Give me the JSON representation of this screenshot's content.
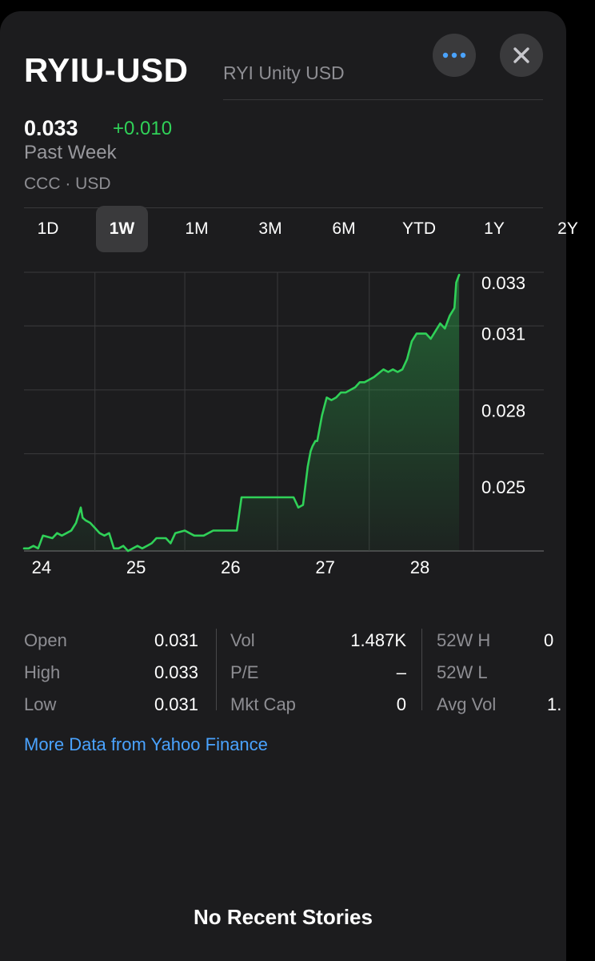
{
  "header": {
    "ticker": "RYIU-USD",
    "full_name": "RYI Unity USD"
  },
  "quote": {
    "price": "0.033",
    "change": "+0.010",
    "period": "Past Week",
    "exchange": "CCC · USD"
  },
  "tabs": [
    "1D",
    "1W",
    "1M",
    "3M",
    "6M",
    "YTD",
    "1Y",
    "2Y"
  ],
  "active_tab": "1W",
  "colors": {
    "background": "#1c1c1e",
    "positive": "#30d158",
    "link": "#4aa3ff",
    "muted": "#8e8e93"
  },
  "icons": {
    "more": "ellipsis-icon",
    "close": "close-icon"
  },
  "chart_data": {
    "type": "area",
    "y_tick_labels": [
      "0.033",
      "0.031",
      "0.028",
      "0.025"
    ],
    "y_ticks": [
      0.033,
      0.031,
      0.028,
      0.025
    ],
    "x_tick_labels": [
      "24",
      "25",
      "26",
      "27",
      "28"
    ],
    "x_ticks": [
      24.0,
      25.0,
      26.0,
      27.0,
      28.0
    ],
    "xlim": [
      23.9,
      28.55
    ],
    "ylim": [
      0.0225,
      0.0334
    ],
    "grid": true,
    "series": [
      {
        "x": [
          23.9,
          23.95,
          24.0,
          24.05,
          24.1,
          24.2,
          24.25,
          24.3,
          24.35,
          24.4,
          24.45,
          24.5,
          24.52,
          24.55,
          24.6,
          24.65,
          24.7,
          24.75,
          24.8,
          24.85,
          24.9,
          24.95,
          25.0,
          25.05,
          25.1,
          25.15,
          25.2,
          25.25,
          25.3,
          25.35,
          25.4,
          25.45,
          25.5,
          25.6,
          25.65,
          25.7,
          25.75,
          25.8,
          25.9,
          26.0,
          26.1,
          26.15,
          26.2,
          26.3,
          26.4,
          26.45,
          26.5,
          26.6,
          26.65,
          26.7,
          26.75,
          26.8,
          26.85,
          26.9,
          26.93,
          26.95,
          26.98,
          27.0,
          27.05,
          27.1,
          27.15,
          27.2,
          27.25,
          27.3,
          27.35,
          27.4,
          27.45,
          27.5,
          27.55,
          27.6,
          27.7,
          27.75,
          27.8,
          27.85,
          27.9,
          27.95,
          28.0,
          28.05,
          28.1,
          28.15,
          28.2,
          28.25,
          28.3,
          28.35,
          28.4,
          28.45,
          28.47,
          28.5
        ],
        "y": [
          0.0226,
          0.0226,
          0.0227,
          0.0226,
          0.0231,
          0.023,
          0.0232,
          0.0231,
          0.0232,
          0.0233,
          0.0236,
          0.0242,
          0.0238,
          0.0237,
          0.0236,
          0.0234,
          0.0232,
          0.0231,
          0.0232,
          0.0226,
          0.0226,
          0.0227,
          0.0225,
          0.0226,
          0.0227,
          0.0226,
          0.0227,
          0.0228,
          0.023,
          0.023,
          0.023,
          0.0228,
          0.0232,
          0.0233,
          0.0232,
          0.0231,
          0.0231,
          0.0231,
          0.0233,
          0.0233,
          0.0233,
          0.0233,
          0.0246,
          0.0246,
          0.0246,
          0.0246,
          0.0246,
          0.0246,
          0.0246,
          0.0246,
          0.0246,
          0.0242,
          0.0243,
          0.0258,
          0.0264,
          0.0266,
          0.0268,
          0.0268,
          0.0278,
          0.0285,
          0.0284,
          0.0285,
          0.0287,
          0.0287,
          0.0288,
          0.0289,
          0.0291,
          0.0291,
          0.0292,
          0.0293,
          0.0296,
          0.0295,
          0.0296,
          0.0295,
          0.0296,
          0.03,
          0.0307,
          0.031,
          0.031,
          0.031,
          0.0308,
          0.0311,
          0.0314,
          0.0312,
          0.0317,
          0.032,
          0.033,
          0.0333
        ]
      }
    ]
  },
  "stats": {
    "col1": [
      {
        "label": "Open",
        "value": "0.031"
      },
      {
        "label": "High",
        "value": "0.033"
      },
      {
        "label": "Low",
        "value": "0.031"
      }
    ],
    "col2": [
      {
        "label": "Vol",
        "value": "1.487K"
      },
      {
        "label": "P/E",
        "value": "–"
      },
      {
        "label": "Mkt Cap",
        "value": "0"
      }
    ],
    "col3": [
      {
        "label": "52W H",
        "value": "0"
      },
      {
        "label": "52W L",
        "value": ""
      },
      {
        "label": "Avg Vol",
        "value": "1."
      }
    ]
  },
  "more_link": "More Data from Yahoo Finance",
  "no_stories": "No Recent Stories"
}
